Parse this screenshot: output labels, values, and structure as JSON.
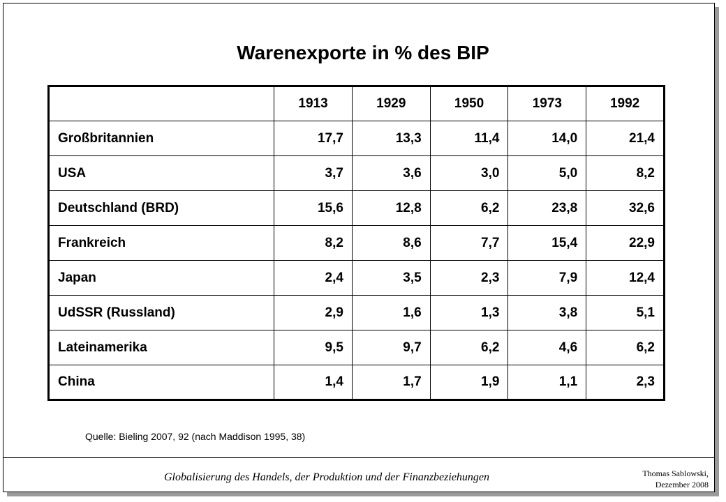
{
  "title": "Warenexporte in % des BIP",
  "table": {
    "years": [
      "1913",
      "1929",
      "1950",
      "1973",
      "1992"
    ],
    "rows": [
      {
        "country": "Großbritannien",
        "values": [
          "17,7",
          "13,3",
          "11,4",
          "14,0",
          "21,4"
        ]
      },
      {
        "country": "USA",
        "values": [
          "3,7",
          "3,6",
          "3,0",
          "5,0",
          "8,2"
        ]
      },
      {
        "country": "Deutschland (BRD)",
        "values": [
          "15,6",
          "12,8",
          "6,2",
          "23,8",
          "32,6"
        ]
      },
      {
        "country": "Frankreich",
        "values": [
          "8,2",
          "8,6",
          "7,7",
          "15,4",
          "22,9"
        ]
      },
      {
        "country": "Japan",
        "values": [
          "2,4",
          "3,5",
          "2,3",
          "7,9",
          "12,4"
        ]
      },
      {
        "country": "UdSSR (Russland)",
        "values": [
          "2,9",
          "1,6",
          "1,3",
          "3,8",
          "5,1"
        ]
      },
      {
        "country": "Lateinamerika",
        "values": [
          "9,5",
          "9,7",
          "6,2",
          "4,6",
          "6,2"
        ]
      },
      {
        "country": "China",
        "values": [
          "1,4",
          "1,7",
          "1,9",
          "1,1",
          "2,3"
        ]
      }
    ]
  },
  "source": "Quelle: Bieling 2007, 92 (nach Maddison 1995, 38)",
  "footer": {
    "title": "Globalisierung des Handels, der Produktion und der Finanzbeziehungen",
    "author": "Thomas Sablowski,",
    "date": "Dezember 2008"
  }
}
